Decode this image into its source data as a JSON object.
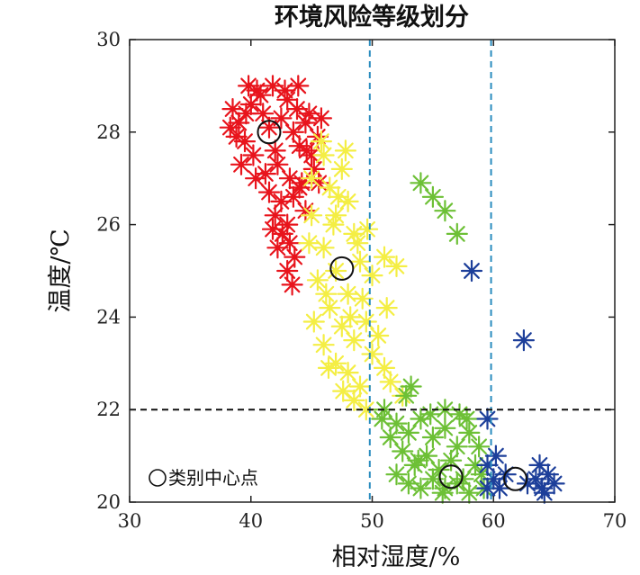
{
  "chart_data": {
    "type": "scatter",
    "title": "环境风险等级划分",
    "xlabel": "相对湿度/%",
    "ylabel": "温度/℃",
    "xlim": [
      30,
      70
    ],
    "ylim": [
      20,
      30
    ],
    "xticks": [
      30,
      40,
      50,
      60,
      70
    ],
    "yticks": [
      20,
      22,
      24,
      26,
      28,
      30
    ],
    "grid": false,
    "reference_lines": [
      {
        "orientation": "vertical",
        "value": 49.8,
        "color": "#2a8cbf",
        "style": "dashed"
      },
      {
        "orientation": "vertical",
        "value": 59.8,
        "color": "#2a8cbf",
        "style": "dashed"
      },
      {
        "orientation": "horizontal",
        "value": 22,
        "color": "#111111",
        "style": "dashed"
      }
    ],
    "legend": {
      "position": "bottom-left",
      "marker": "circle",
      "label": "类别中心点"
    },
    "series": [
      {
        "color": "#e8141c",
        "marker": "asterisk",
        "points": [
          [
            38.5,
            28.5
          ],
          [
            39,
            28.2
          ],
          [
            39.5,
            27.8
          ],
          [
            40,
            28.6
          ],
          [
            40.5,
            28.9
          ],
          [
            41,
            28.4
          ],
          [
            41.5,
            28.1
          ],
          [
            42,
            27.6
          ],
          [
            42.5,
            28.3
          ],
          [
            43,
            28.7
          ],
          [
            43.5,
            28.0
          ],
          [
            44,
            27.7
          ],
          [
            44.5,
            28.2
          ],
          [
            45,
            27.5
          ],
          [
            45.5,
            27.9
          ],
          [
            38.8,
            27.9
          ],
          [
            39.2,
            27.3
          ],
          [
            40.2,
            27.5
          ],
          [
            41.2,
            27.1
          ],
          [
            42.2,
            27.3
          ],
          [
            43.2,
            27.0
          ],
          [
            44.2,
            26.9
          ],
          [
            45.2,
            27.2
          ],
          [
            40.8,
            28.8
          ],
          [
            41.8,
            29.0
          ],
          [
            42.8,
            28.9
          ],
          [
            43.8,
            28.5
          ],
          [
            44.8,
            28.4
          ],
          [
            39.8,
            29.0
          ],
          [
            38.3,
            28.1
          ],
          [
            41.5,
            26.7
          ],
          [
            42.5,
            26.5
          ],
          [
            43.5,
            26.6
          ],
          [
            44.5,
            26.3
          ],
          [
            42,
            26.2
          ],
          [
            43,
            26.0
          ],
          [
            43.2,
            25.6
          ],
          [
            42.6,
            25.8
          ],
          [
            43.6,
            25.3
          ],
          [
            42.2,
            25.5
          ],
          [
            43.0,
            25.0
          ],
          [
            43.4,
            24.7
          ],
          [
            41.8,
            25.9
          ],
          [
            44.0,
            26.8
          ],
          [
            40.4,
            27.0
          ],
          [
            39.6,
            28.4
          ],
          [
            45.8,
            28.3
          ],
          [
            45.6,
            26.9
          ],
          [
            44.6,
            27.6
          ],
          [
            43.9,
            29.0
          ]
        ]
      },
      {
        "color": "#f4ee44",
        "marker": "asterisk",
        "points": [
          [
            45,
            27.0
          ],
          [
            46,
            27.5
          ],
          [
            46.5,
            26.8
          ],
          [
            47,
            26.2
          ],
          [
            47.5,
            27.2
          ],
          [
            48,
            26.5
          ],
          [
            48.5,
            25.8
          ],
          [
            46,
            25.5
          ],
          [
            45.5,
            24.8
          ],
          [
            47,
            25.0
          ],
          [
            48,
            24.5
          ],
          [
            49,
            25.2
          ],
          [
            50,
            24.9
          ],
          [
            51,
            25.3
          ],
          [
            52,
            25.1
          ],
          [
            46.5,
            24.2
          ],
          [
            47.5,
            23.8
          ],
          [
            48.5,
            23.5
          ],
          [
            49.5,
            23.9
          ],
          [
            46,
            23.4
          ],
          [
            47,
            23.0
          ],
          [
            48,
            22.8
          ],
          [
            49,
            22.5
          ],
          [
            50,
            23.2
          ],
          [
            51,
            22.9
          ],
          [
            48.5,
            22.2
          ],
          [
            49.5,
            22.0
          ],
          [
            45,
            26.2
          ],
          [
            44.8,
            25.6
          ],
          [
            46.8,
            26.0
          ],
          [
            47.8,
            27.6
          ],
          [
            45.2,
            23.9
          ],
          [
            46.2,
            24.5
          ],
          [
            48.2,
            24.0
          ],
          [
            49.2,
            24.4
          ],
          [
            50.5,
            23.6
          ],
          [
            51.5,
            22.6
          ],
          [
            52.5,
            22.3
          ],
          [
            47.6,
            22.4
          ],
          [
            45.8,
            27.8
          ],
          [
            46.4,
            22.9
          ],
          [
            48.8,
            25.6
          ],
          [
            49.6,
            25.9
          ],
          [
            51.2,
            24.2
          ],
          [
            47.2,
            26.6
          ]
        ]
      },
      {
        "color": "#6dc036",
        "marker": "asterisk",
        "points": [
          [
            51,
            22.0
          ],
          [
            52,
            21.7
          ],
          [
            53,
            21.5
          ],
          [
            54,
            21.8
          ],
          [
            55,
            21.4
          ],
          [
            56,
            21.6
          ],
          [
            57,
            21.2
          ],
          [
            58,
            21.5
          ],
          [
            52.5,
            21.1
          ],
          [
            53.5,
            20.8
          ],
          [
            54.5,
            21.0
          ],
          [
            55.5,
            20.7
          ],
          [
            56.5,
            20.9
          ],
          [
            57.5,
            20.5
          ],
          [
            58.5,
            20.8
          ],
          [
            53,
            20.4
          ],
          [
            54,
            20.3
          ],
          [
            55,
            20.5
          ],
          [
            56,
            20.3
          ],
          [
            57,
            20.4
          ],
          [
            58,
            20.2
          ],
          [
            59,
            20.6
          ],
          [
            52,
            20.6
          ],
          [
            51.5,
            21.4
          ],
          [
            52.8,
            22.3
          ],
          [
            53.2,
            22.5
          ],
          [
            56,
            22.0
          ],
          [
            57.2,
            21.9
          ],
          [
            58.8,
            21.2
          ],
          [
            54.8,
            21.9
          ],
          [
            55.8,
            20.2
          ],
          [
            50.8,
            21.8
          ],
          [
            59.2,
            20.3
          ],
          [
            57.8,
            21.8
          ],
          [
            53.8,
            20.9
          ],
          [
            54,
            26.9
          ],
          [
            55,
            26.6
          ],
          [
            56,
            26.3
          ],
          [
            57,
            25.8
          ]
        ]
      },
      {
        "color": "#1d3f9a",
        "marker": "asterisk",
        "points": [
          [
            59.5,
            20.8
          ],
          [
            60,
            20.5
          ],
          [
            60.5,
            20.3
          ],
          [
            61,
            20.6
          ],
          [
            59.5,
            20.3
          ],
          [
            60.2,
            21.0
          ],
          [
            63.5,
            20.5
          ],
          [
            64,
            20.3
          ],
          [
            64.5,
            20.6
          ],
          [
            63.8,
            20.8
          ],
          [
            64.2,
            20.2
          ],
          [
            62.8,
            20.4
          ],
          [
            65,
            20.4
          ],
          [
            59.5,
            21.8
          ],
          [
            58.2,
            25.0
          ],
          [
            62.5,
            23.5
          ]
        ]
      }
    ],
    "centers": [
      [
        41.5,
        28.0
      ],
      [
        47.5,
        25.05
      ],
      [
        56.5,
        20.55
      ],
      [
        61.8,
        20.5
      ]
    ]
  }
}
